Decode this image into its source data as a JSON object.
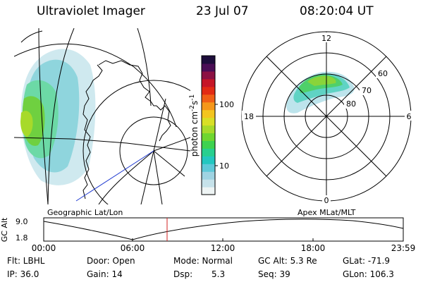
{
  "header": {
    "title": "Ultraviolet Imager",
    "date": "23 Jul 07",
    "time": "08:20:04 UT"
  },
  "map_label": "Geographic Lat/Lon",
  "polar_label": "Apex MLat/MLT",
  "colorbar": {
    "unit_html": "photon cm-2s-1",
    "ticks": [
      "100",
      "10"
    ],
    "colors": [
      "#eef4f4",
      "#c6e2ea",
      "#9fd3e2",
      "#5fc9d8",
      "#23c7c0",
      "#27cf8f",
      "#3dd24f",
      "#6fd62f",
      "#a7da2a",
      "#d8df26",
      "#f3c51f",
      "#f5971a",
      "#f05f16",
      "#e22b14",
      "#c61627",
      "#8c1143",
      "#4a0d55",
      "#1d0d3b"
    ]
  },
  "polar_ticks": {
    "mlt": [
      "12",
      "6",
      "0",
      "18"
    ],
    "mlat": [
      "60",
      "70",
      "80"
    ]
  },
  "altitude_plot": {
    "ylabel": "GC Alt",
    "yticks": [
      "9.0",
      "1.8"
    ],
    "xticks": [
      "00:00",
      "06:00",
      "12:00",
      "18:00",
      "23:59"
    ],
    "curve_color": "#000000",
    "marker_color": "#d22020"
  },
  "footer": {
    "flt": "Flt: LBHL",
    "ip": "IP: 36.0",
    "door": "Door: Open",
    "gain": "Gain: 14",
    "mode": "Mode: Normal",
    "dsp": "Dsp:",
    "dsp_value": "5.3",
    "gc_alt": "GC Alt: 5.3 Re",
    "seq": "Seq: 39",
    "glat": "GLat: -71.9",
    "glon": "GLon: 106.3"
  }
}
